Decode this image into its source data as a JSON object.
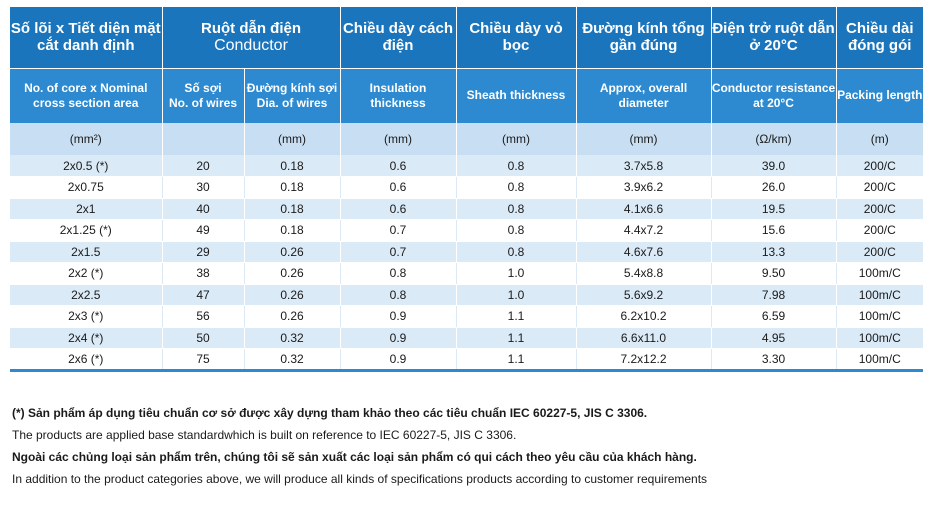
{
  "header_vi": {
    "core": "Số lõi x Tiết diện mặt cắt danh định",
    "conductor": "Ruột dẫn điện",
    "conductor_en": "Conductor",
    "insulation": "Chiều dày cách điện",
    "sheath": "Chiều dày vỏ bọc",
    "diameter": "Đường kính tổng gần đúng",
    "resistance": "Điện trở ruột dẫn ở 20°C",
    "packing": "Chiều dài đóng gói"
  },
  "header_en": {
    "core": "No. of core  x Nominal cross section area",
    "wires_vi": "Số sợi",
    "wires_en": "No. of wires",
    "dia_vi": "Đường kính sợi",
    "dia_en": "Dia. of wires",
    "insulation": "Insulation thickness",
    "sheath": "Sheath thickness",
    "diameter": "Approx, overall diameter",
    "resistance": "Conductor resistance at 20°C",
    "packing": "Packing length"
  },
  "units": [
    "(mm²)",
    "",
    "(mm)",
    "(mm)",
    "(mm)",
    "(mm)",
    "(Ω/km)",
    "(m)"
  ],
  "rows": [
    [
      "2x0.5 (*)",
      "20",
      "0.18",
      "0.6",
      "0.8",
      "3.7x5.8",
      "39.0",
      "200/C"
    ],
    [
      "2x0.75",
      "30",
      "0.18",
      "0.6",
      "0.8",
      "3.9x6.2",
      "26.0",
      "200/C"
    ],
    [
      "2x1",
      "40",
      "0.18",
      "0.6",
      "0.8",
      "4.1x6.6",
      "19.5",
      "200/C"
    ],
    [
      "2x1.25 (*)",
      "49",
      "0.18",
      "0.7",
      "0.8",
      "4.4x7.2",
      "15.6",
      "200/C"
    ],
    [
      "2x1.5",
      "29",
      "0.26",
      "0.7",
      "0.8",
      "4.6x7.6",
      "13.3",
      "200/C"
    ],
    [
      "2x2 (*)",
      "38",
      "0.26",
      "0.8",
      "1.0",
      "5.4x8.8",
      "9.50",
      "100m/C"
    ],
    [
      "2x2.5",
      "47",
      "0.26",
      "0.8",
      "1.0",
      "5.6x9.2",
      "7.98",
      "100m/C"
    ],
    [
      "2x3 (*)",
      "56",
      "0.26",
      "0.9",
      "1.1",
      "6.2x10.2",
      "6.59",
      "100m/C"
    ],
    [
      "2x4 (*)",
      "50",
      "0.32",
      "0.9",
      "1.1",
      "6.6x11.0",
      "4.95",
      "100m/C"
    ],
    [
      "2x6 (*)",
      "75",
      "0.32",
      "0.9",
      "1.1",
      "7.2x12.2",
      "3.30",
      "100m/C"
    ]
  ],
  "notes": {
    "note1_vi": "(*) Sản phẩm áp dụng tiêu chuẩn cơ sở được xây dựng tham khảo theo các tiêu chuẩn IEC 60227-5, JIS C 3306.",
    "note1_en": "The products are applied base standardwhich is built on reference to IEC 60227-5, JIS C 3306.",
    "note2_vi": "Ngoài các chủng loại sản phẩm trên, chúng tôi sẽ sản xuất các loại sản phẩm có qui cách theo yêu cầu của khách hàng.",
    "note2_en": "In addition to the product categories above, we will produce all kinds of specifications products according to customer requirements"
  },
  "colors": {
    "header_dark": "#1b75bc",
    "header_light": "#2d8ad0",
    "unit_row": "#c8dff3",
    "stripe": "#dbeaf7"
  }
}
